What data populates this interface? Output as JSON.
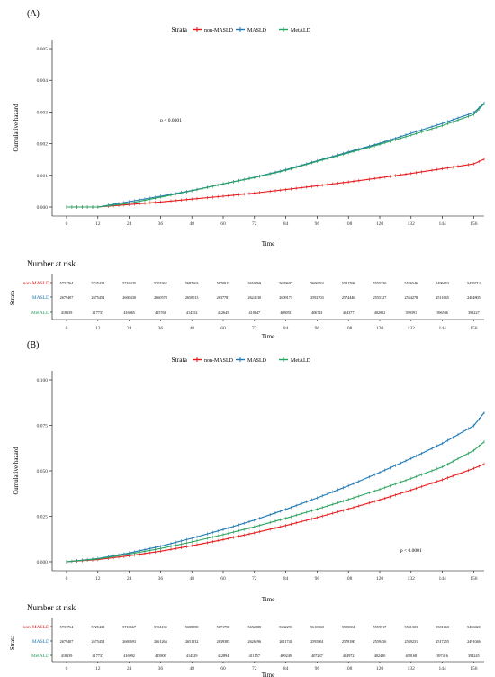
{
  "chart_data": [
    {
      "panel_label": "(A)",
      "type": "line",
      "legend": {
        "title": "Strata",
        "position": "top",
        "entries": [
          "non-MASLD",
          "MASLD",
          "MetALD"
        ]
      },
      "xlabel": "Time",
      "ylabel": "Cumulative hazard",
      "xlim": [
        0,
        160
      ],
      "ylim": [
        0,
        0.005
      ],
      "x_ticks": [
        0,
        12,
        24,
        36,
        48,
        60,
        72,
        84,
        96,
        108,
        120,
        132,
        144,
        156
      ],
      "y_ticks": [
        "0.000",
        "0.001",
        "0.002",
        "0.003",
        "0.004",
        "0.005"
      ],
      "grid": false,
      "annotation": "p < 0.0001",
      "annotation_at": [
        40,
        0.0027
      ],
      "x": [
        0,
        12,
        24,
        36,
        48,
        60,
        72,
        84,
        96,
        108,
        120,
        132,
        144,
        156,
        160
      ],
      "series": [
        {
          "name": "non-MASLD",
          "color": "#e41a1c",
          "values": [
            0,
            0,
            8e-05,
            0.00016,
            0.00025,
            0.00034,
            0.00044,
            0.00055,
            0.00067,
            0.00079,
            0.00092,
            0.00106,
            0.00121,
            0.00136,
            0.00151
          ]
        },
        {
          "name": "MASLD",
          "color": "#1f78b4",
          "values": [
            0,
            0,
            0.00017,
            0.00034,
            0.00052,
            0.00073,
            0.00094,
            0.00118,
            0.00146,
            0.00174,
            0.00201,
            0.00233,
            0.00264,
            0.00298,
            0.00328
          ]
        },
        {
          "name": "MetALD",
          "color": "#2ca25f",
          "values": [
            0,
            0,
            0.00012,
            0.00031,
            0.00051,
            0.00073,
            0.00093,
            0.00116,
            0.00144,
            0.00171,
            0.00198,
            0.00227,
            0.00257,
            0.00292,
            0.00326
          ]
        }
      ],
      "risk_table": {
        "title": "Number at risk",
        "y_title": "Strata",
        "x_title": "Time",
        "times": [
          0,
          12,
          24,
          36,
          48,
          60,
          72,
          84,
          96,
          108,
          120,
          132,
          144,
          156
        ],
        "rows": [
          {
            "label": "non-MASLD",
            "color": "#e41a1c",
            "values": [
              "5731764",
              "5725434",
              "5716445",
              "5703365",
              "5687663",
              "5670015",
              "5650769",
              "5629607",
              "5606834",
              "5581769",
              "5555330",
              "5526546",
              "5496653",
              "5459712"
            ]
          },
          {
            "label": "MASLD",
            "color": "#1f78b4",
            "values": [
              "2679407",
              "2675454",
              "2669430",
              "2660570",
              "2650013",
              "2637781",
              "2624130",
              "2609171",
              "2592703",
              "2574446",
              "2555127",
              "2534278",
              "2511665",
              "2484805"
            ]
          },
          {
            "label": "MetALD",
            "color": "#2ca25f",
            "values": [
              "418339",
              "417737",
              "416965",
              "415768",
              "414352",
              "412645",
              "410647",
              "408051",
              "406741",
              "404377",
              "402002",
              "399391",
              "396536",
              "393227"
            ]
          }
        ]
      }
    },
    {
      "panel_label": "(B)",
      "type": "line",
      "legend": {
        "title": "Strata",
        "position": "top",
        "entries": [
          "non-MASLD",
          "MASLD",
          "MetALD"
        ]
      },
      "xlabel": "Time",
      "ylabel": "Cumulative hazard",
      "xlim": [
        0,
        160
      ],
      "ylim": [
        0,
        0.1
      ],
      "x_ticks": [
        0,
        12,
        24,
        36,
        48,
        60,
        72,
        84,
        96,
        108,
        120,
        132,
        144,
        156
      ],
      "y_ticks": [
        "0.000",
        "0.025",
        "0.050",
        "0.075",
        "0.100"
      ],
      "grid": false,
      "annotation": "p < 0.0001",
      "annotation_at": [
        132,
        0.0055
      ],
      "x": [
        0,
        12,
        24,
        36,
        48,
        60,
        72,
        84,
        96,
        108,
        120,
        132,
        144,
        156,
        160
      ],
      "series": [
        {
          "name": "non-MASLD",
          "color": "#e41a1c",
          "values": [
            0,
            0.0012,
            0.0033,
            0.0058,
            0.0088,
            0.0122,
            0.0159,
            0.0199,
            0.0243,
            0.029,
            0.034,
            0.0394,
            0.0451,
            0.0513,
            0.0537
          ]
        },
        {
          "name": "MASLD",
          "color": "#1f78b4",
          "values": [
            0,
            0.0018,
            0.0048,
            0.0085,
            0.0129,
            0.0177,
            0.0229,
            0.0288,
            0.0351,
            0.0418,
            0.0491,
            0.0568,
            0.0651,
            0.0748,
            0.082
          ]
        },
        {
          "name": "MetALD",
          "color": "#2ca25f",
          "values": [
            0,
            0.0016,
            0.0042,
            0.0073,
            0.0109,
            0.0149,
            0.0192,
            0.0239,
            0.0289,
            0.0342,
            0.0398,
            0.0458,
            0.0522,
            0.0612,
            0.066
          ]
        }
      ],
      "risk_table": {
        "title": "Number at risk",
        "y_title": "Strata",
        "x_title": "Time",
        "times": [
          0,
          12,
          24,
          36,
          48,
          60,
          72,
          84,
          96,
          108,
          120,
          132,
          144,
          156
        ],
        "rows": [
          {
            "label": "non-MASLD",
            "color": "#e41a1c",
            "values": [
              "5731764",
              "5725434",
              "5716667",
              "5704132",
              "5688898",
              "5671758",
              "5652888",
              "5632291",
              "5610068",
              "5585004",
              "5559717",
              "5531303",
              "5501660",
              "5466020"
            ]
          },
          {
            "label": "MASLD",
            "color": "#1f78b4",
            "values": [
              "2679407",
              "2675454",
              "2669693",
              "2661264",
              "2651132",
              "2639385",
              "2626196",
              "2611741",
              "2595861",
              "2578180",
              "2559456",
              "2539231",
              "2517255",
              "2491046"
            ]
          },
          {
            "label": "MetALD",
            "color": "#2ca25f",
            "values": [
              "418339",
              "417737",
              "416992",
              "415800",
              "414529",
              "412894",
              "411157",
              "409249",
              "407237",
              "404972",
              "402480",
              "400168",
              "397416",
              "394245"
            ]
          }
        ]
      }
    }
  ]
}
